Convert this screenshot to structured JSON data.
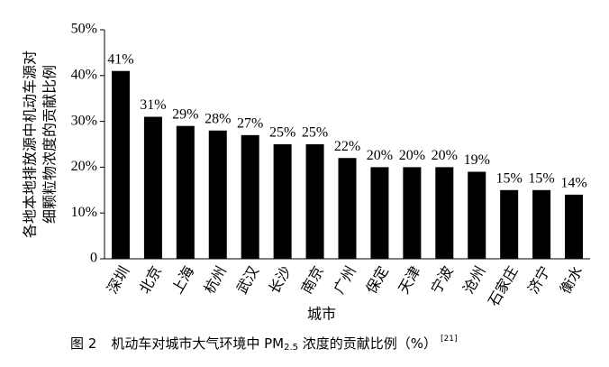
{
  "chart_data": {
    "type": "bar",
    "y_label": [
      "各地本地排放源中机动车源对",
      "细颗粒物浓度的贡献比例"
    ],
    "x_label": "城市",
    "caption": {
      "number": "图 2",
      "text_before": "机动车对城市大气环境中 PM",
      "subscript": "2.5",
      "text_after": " 浓度的贡献比例（%）",
      "reference": "[21]"
    },
    "categories": [
      "深圳",
      "北京",
      "上海",
      "杭州",
      "武汉",
      "长沙",
      "南京",
      "广州",
      "保定",
      "天津",
      "宁波",
      "沧州",
      "石家庄",
      "济宁",
      "衡水"
    ],
    "values": [
      41,
      31,
      29,
      28,
      27,
      25,
      25,
      22,
      20,
      20,
      20,
      19,
      15,
      15,
      14
    ],
    "value_labels": [
      "41%",
      "31%",
      "29%",
      "28%",
      "27%",
      "25%",
      "25%",
      "22%",
      "20%",
      "20%",
      "20%",
      "19%",
      "15%",
      "15%",
      "14%"
    ],
    "color": "#000000",
    "ylim": [
      0,
      50
    ],
    "yticks": [
      0,
      {
        "value": 10,
        "label": "10%"
      },
      {
        "value": 20,
        "label": "20%"
      },
      {
        "value": 30,
        "label": "30%"
      },
      {
        "value": 40,
        "label": "40%"
      },
      {
        "value": 50,
        "label": "50%"
      }
    ],
    "grid": false
  }
}
